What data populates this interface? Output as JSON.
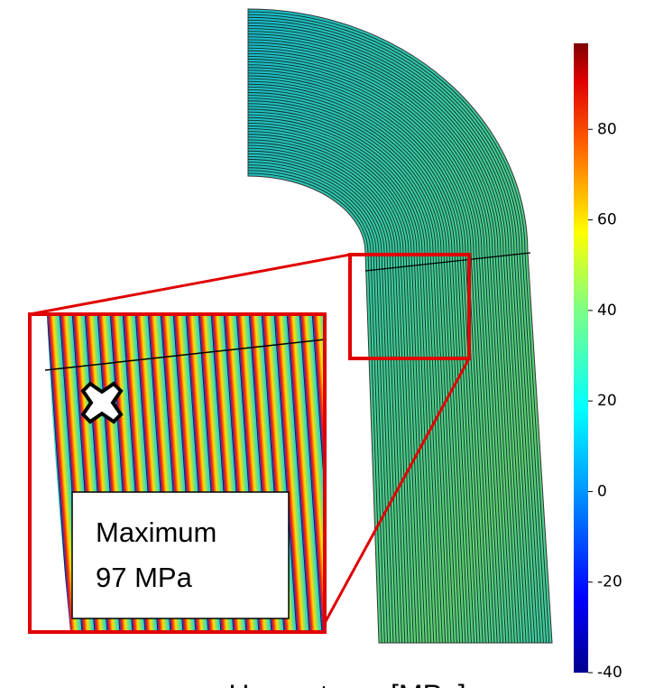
{
  "colorbar": {
    "limits": [
      -40,
      99
    ],
    "ticks": [
      80,
      60,
      40,
      20,
      0,
      -20,
      -40
    ]
  },
  "annotation": {
    "line1": "Maximum",
    "line2": "97 MPa"
  },
  "caption": "<Hoop stress [MPa]>"
}
